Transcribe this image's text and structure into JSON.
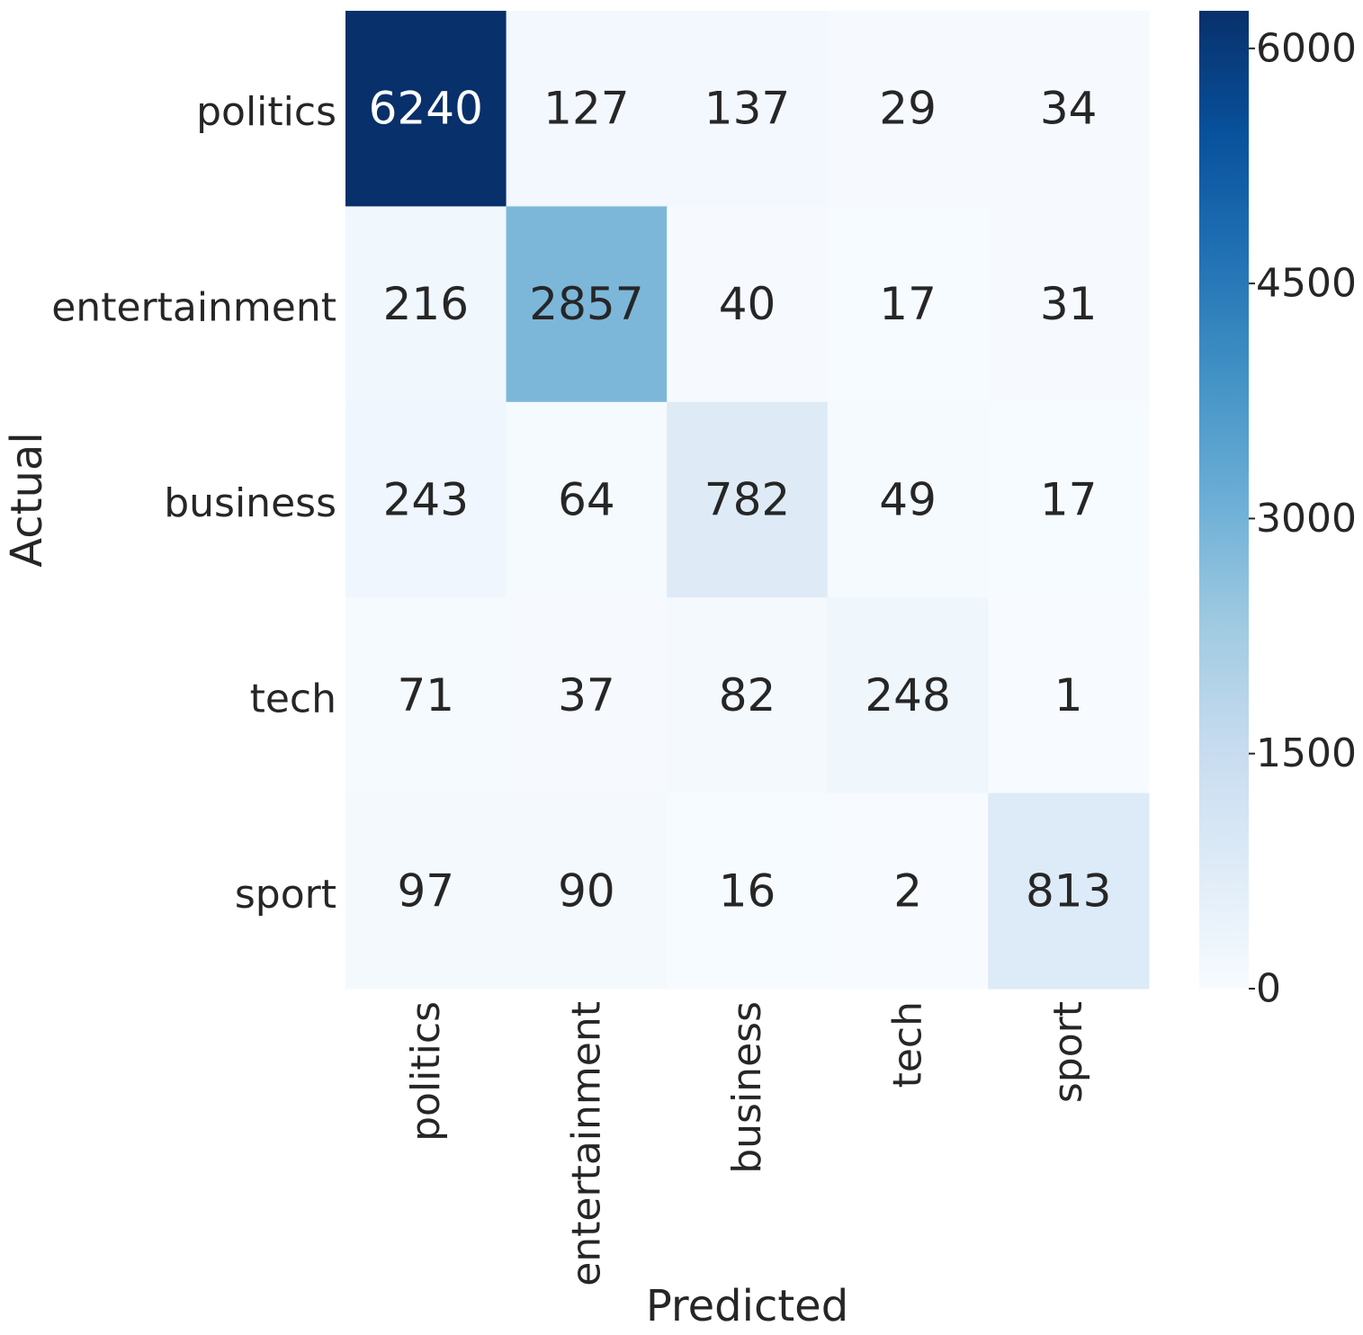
{
  "chart_data": {
    "type": "heatmap",
    "title": "",
    "xlabel": "Predicted",
    "ylabel": "Actual",
    "x_categories": [
      "politics",
      "entertainment",
      "business",
      "tech",
      "sport"
    ],
    "y_categories": [
      "politics",
      "entertainment",
      "business",
      "tech",
      "sport"
    ],
    "values": [
      [
        6240,
        127,
        137,
        29,
        34
      ],
      [
        216,
        2857,
        40,
        17,
        31
      ],
      [
        243,
        64,
        782,
        49,
        17
      ],
      [
        71,
        37,
        82,
        248,
        1
      ],
      [
        97,
        90,
        16,
        2,
        813
      ]
    ],
    "colormap": "Blues",
    "colorbar": {
      "min": 0,
      "max": 6240,
      "ticks": [
        0,
        1500,
        3000,
        4500,
        6000
      ],
      "tick_labels": [
        "0",
        "1500",
        "3000",
        "4500",
        "6000"
      ]
    },
    "colors": {
      "text_dark": "#262626",
      "text_light": "#ffffff"
    }
  }
}
